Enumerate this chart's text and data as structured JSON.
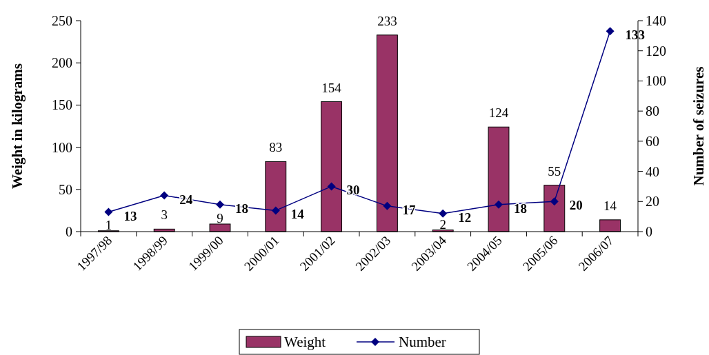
{
  "chart_data": {
    "type": "bar",
    "ylabel": "Weight in kilograms",
    "y2label": "Number of seizures",
    "categories": [
      "1997/98",
      "1998/99",
      "1999/00",
      "2000/01",
      "2001/02",
      "2002/03",
      "2003/04",
      "2004/05",
      "2005/06",
      "2006/07"
    ],
    "series": [
      {
        "name": "Weight",
        "color": "#993366",
        "values": [
          1,
          3,
          9,
          83,
          154,
          233,
          2,
          124,
          55,
          14
        ]
      },
      {
        "name": "Number",
        "type": "line",
        "axis": "y2",
        "color": "#000080",
        "marker": "diamond",
        "values": [
          13,
          24,
          18,
          14,
          30,
          17,
          12,
          18,
          20,
          133
        ]
      }
    ],
    "ylim": [
      0,
      250
    ],
    "yticks": [
      0,
      50,
      100,
      150,
      200,
      250
    ],
    "y2lim": [
      0,
      140
    ],
    "y2ticks": [
      0,
      20,
      40,
      60,
      80,
      100,
      120,
      140
    ],
    "data_labels": true,
    "legend": "bottom",
    "grid": false
  }
}
